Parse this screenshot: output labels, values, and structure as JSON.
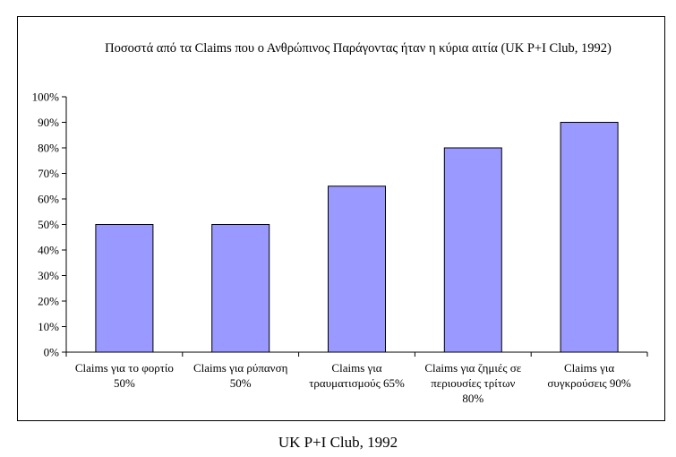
{
  "chart_data": {
    "type": "bar",
    "title": "Ποσοστά από τα Claims που ο Ανθρώπινος Παράγοντας ήταν η κύρια αιτία (UK P+I Club, 1992)",
    "categories": [
      [
        "Claims για το φορτίο",
        "50%"
      ],
      [
        "Claims για ρύπανση",
        "50%"
      ],
      [
        "Claims για",
        "τραυματισμούς 65%"
      ],
      [
        "Claims για ζημιές σε",
        "περιουσίες τρίτων",
        "80%"
      ],
      [
        "Claims για",
        "συγκρούσεις 90%"
      ]
    ],
    "values": [
      50,
      50,
      65,
      80,
      90
    ],
    "ylim": [
      0,
      100
    ],
    "yticks": [
      "0%",
      "10%",
      "20%",
      "30%",
      "40%",
      "50%",
      "60%",
      "70%",
      "80%",
      "90%",
      "100%"
    ],
    "xlabel": "",
    "ylabel": "",
    "grid": false,
    "legend": "none",
    "bar_color": "#9999ff"
  },
  "caption": "UK P+I Club, 1992"
}
